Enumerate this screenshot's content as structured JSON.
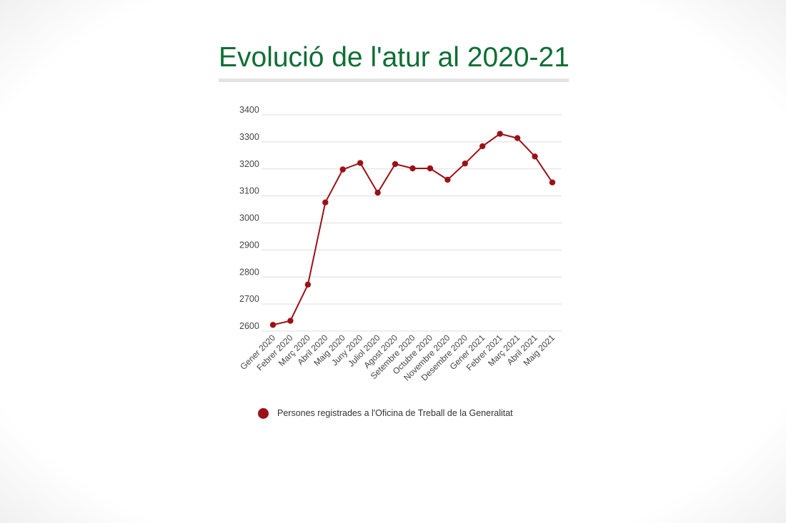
{
  "page": {
    "title": "Evolució de l'atur al 2020-21"
  },
  "chart_data": {
    "type": "line",
    "title": "Evolució de l'atur al 2020-21",
    "xlabel": "",
    "ylabel": "",
    "categories": [
      "Gener 2020",
      "Febrer 2020",
      "Març 2020",
      "Abril 2020",
      "Maig 2020",
      "Juny 2020",
      "Juliol 2020",
      "Agost 2020",
      "Setembre 2020",
      "Octubre 2020",
      "Novembre 2020",
      "Desembre 2020",
      "Gener 2021",
      "Febrer 2021",
      "Març 2021",
      "Abril 2021",
      "Maig 2021"
    ],
    "series": [
      {
        "name": "Persones registrades a l'Oficina de Treball de la Generalitat",
        "values": [
          2623,
          2638,
          2772,
          3076,
          3198,
          3222,
          3112,
          3218,
          3202,
          3202,
          3160,
          3220,
          3284,
          3330,
          3314,
          3246,
          3150
        ]
      }
    ],
    "yticks": [
      "2600",
      "2700",
      "2800",
      "2900",
      "3000",
      "3100",
      "3200",
      "3300",
      "3400"
    ],
    "ylim": [
      2600,
      3400
    ],
    "grid": "horizontal",
    "legend": "bottom",
    "colors": {
      "series": "#9b1116",
      "grid": "#dddddd",
      "tick_text": "#444444"
    }
  }
}
